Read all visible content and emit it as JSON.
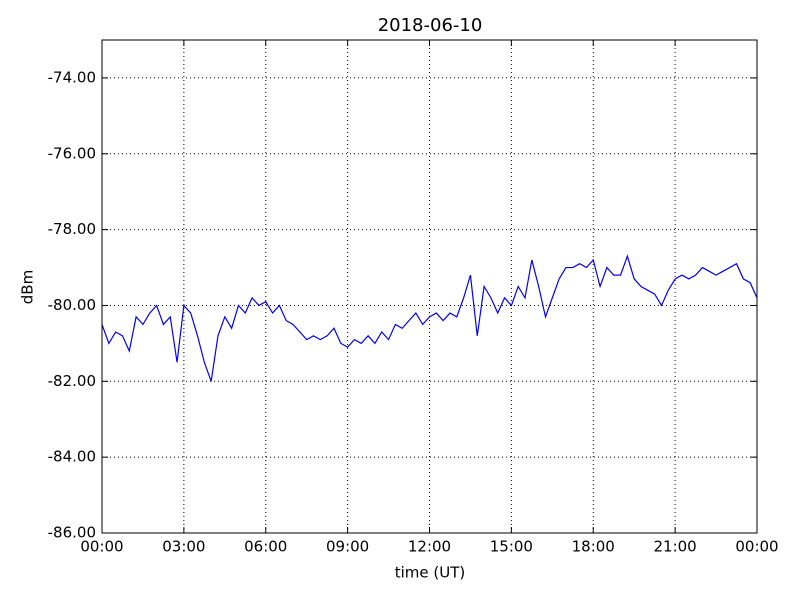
{
  "chart_data": {
    "type": "line",
    "title": "2018-06-10",
    "xlabel": "time (UT)",
    "ylabel": "dBm",
    "x": [
      0,
      0.25,
      0.5,
      0.75,
      1,
      1.25,
      1.5,
      1.75,
      2,
      2.25,
      2.5,
      2.75,
      3,
      3.25,
      3.5,
      3.75,
      4,
      4.25,
      4.5,
      4.75,
      5,
      5.25,
      5.5,
      5.75,
      6,
      6.25,
      6.5,
      6.75,
      7,
      7.25,
      7.5,
      7.75,
      8,
      8.25,
      8.5,
      8.75,
      9,
      9.25,
      9.5,
      9.75,
      10,
      10.25,
      10.5,
      10.75,
      11,
      11.25,
      11.5,
      11.75,
      12,
      12.25,
      12.5,
      12.75,
      13,
      13.25,
      13.5,
      13.75,
      14,
      14.25,
      14.5,
      14.75,
      15,
      15.25,
      15.5,
      15.75,
      16,
      16.25,
      16.5,
      16.75,
      17,
      17.25,
      17.5,
      17.75,
      18,
      18.25,
      18.5,
      18.75,
      19,
      19.25,
      19.5,
      19.75,
      20,
      20.25,
      20.5,
      20.75,
      21,
      21.25,
      21.5,
      21.75,
      22,
      22.25,
      22.5,
      22.75,
      23,
      23.25,
      23.5,
      23.75,
      24
    ],
    "series": [
      {
        "name": "dBm",
        "color": "#0000ff",
        "values": [
          -80.5,
          -81.0,
          -80.7,
          -80.8,
          -81.2,
          -80.3,
          -80.5,
          -80.2,
          -80.0,
          -80.5,
          -80.3,
          -81.5,
          -80.0,
          -80.2,
          -80.8,
          -81.5,
          -82.0,
          -80.8,
          -80.3,
          -80.6,
          -80.0,
          -80.2,
          -79.8,
          -80.0,
          -79.9,
          -80.2,
          -80.0,
          -80.4,
          -80.5,
          -80.7,
          -80.9,
          -80.8,
          -80.9,
          -80.8,
          -80.6,
          -81.0,
          -81.1,
          -80.9,
          -81.0,
          -80.8,
          -81.0,
          -80.7,
          -80.9,
          -80.5,
          -80.6,
          -80.4,
          -80.2,
          -80.5,
          -80.3,
          -80.2,
          -80.4,
          -80.2,
          -80.3,
          -79.8,
          -79.2,
          -80.8,
          -79.5,
          -79.8,
          -80.2,
          -79.8,
          -80.0,
          -79.5,
          -79.8,
          -78.8,
          -79.5,
          -80.3,
          -79.8,
          -79.3,
          -79.0,
          -79.0,
          -78.9,
          -79.0,
          -78.8,
          -79.5,
          -79.0,
          -79.2,
          -79.2,
          -78.7,
          -79.3,
          -79.5,
          -79.6,
          -79.7,
          -80.0,
          -79.6,
          -79.3,
          -79.2,
          -79.3,
          -79.2,
          -79.0,
          -79.1,
          -79.2,
          -79.1,
          -79.0,
          -78.9,
          -79.3,
          -79.4,
          -79.8
        ]
      }
    ],
    "xlim": [
      0,
      24
    ],
    "xticks": [
      {
        "value": 0,
        "label": "00:00"
      },
      {
        "value": 3,
        "label": "03:00"
      },
      {
        "value": 6,
        "label": "06:00"
      },
      {
        "value": 9,
        "label": "09:00"
      },
      {
        "value": 12,
        "label": "12:00"
      },
      {
        "value": 15,
        "label": "15:00"
      },
      {
        "value": 18,
        "label": "18:00"
      },
      {
        "value": 21,
        "label": "21:00"
      },
      {
        "value": 24,
        "label": "00:00"
      }
    ],
    "ylim": [
      -86,
      -73
    ],
    "yticks": [
      {
        "value": -86,
        "label": "-86.00"
      },
      {
        "value": -84,
        "label": "-84.00"
      },
      {
        "value": -82,
        "label": "-82.00"
      },
      {
        "value": -80,
        "label": "-80.00"
      },
      {
        "value": -78,
        "label": "-78.00"
      },
      {
        "value": -76,
        "label": "-76.00"
      },
      {
        "value": -74,
        "label": "-74.00"
      }
    ],
    "grid": true
  }
}
